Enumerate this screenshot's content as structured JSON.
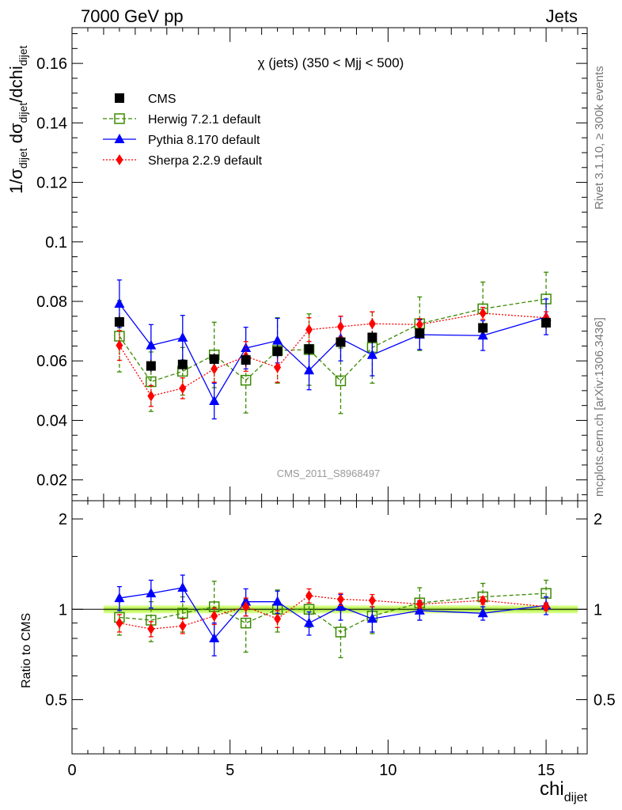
{
  "header": {
    "left": "7000 GeV pp",
    "right": "Jets"
  },
  "side_labels": {
    "rivet": "Rivet 3.1.10, ≥ 300k events",
    "mcplots": "mcplots.cern.ch [arXiv:1306.3436]"
  },
  "colors": {
    "cms": "#000000",
    "herwig": "#3a8a00",
    "pythia": "#0000ff",
    "sherpa": "#ff0000",
    "band": "#ccff66"
  },
  "chart_data": [
    {
      "type": "scatter",
      "title": "χ (jets) (350 < Mjj <  500)",
      "watermark": "CMS_2011_S8968497",
      "ylabel": "1/σ_dijet dσ_dijet/dchi_dijet",
      "ylim": [
        0.013,
        0.172
      ],
      "yticks": [
        0.02,
        0.04,
        0.06,
        0.08,
        0.1,
        0.12,
        0.14,
        0.16
      ],
      "ytick_labels": [
        "0.02",
        "0.04",
        "0.06",
        "0.08",
        "0.1",
        "0.12",
        "0.14",
        "0.16"
      ],
      "xlim": [
        0,
        16.3
      ],
      "legend_position": "top-left",
      "x": [
        1.5,
        2.5,
        3.5,
        4.5,
        5.5,
        6.5,
        7.5,
        8.5,
        9.5,
        11,
        13,
        15
      ],
      "series": [
        {
          "key": "cms",
          "name": "CMS",
          "style": "markers",
          "values": [
            0.0731,
            0.0583,
            0.0588,
            0.0606,
            0.0603,
            0.0632,
            0.064,
            0.0663,
            0.0679,
            0.0693,
            0.0711,
            0.0728
          ],
          "errors": [
            0.002,
            0.002,
            0.002,
            0.002,
            0.002,
            0.002,
            0.002,
            0.002,
            0.002,
            0.002,
            0.002,
            0.002
          ]
        },
        {
          "key": "herwig",
          "name": "Herwig 7.2.1 default",
          "style": "dashed",
          "values": [
            0.0683,
            0.053,
            0.0565,
            0.062,
            0.0535,
            0.0635,
            0.0638,
            0.0533,
            0.0645,
            0.0725,
            0.0775,
            0.0808
          ],
          "errors": [
            0.012,
            0.01,
            0.008,
            0.011,
            0.011,
            0.011,
            0.012,
            0.011,
            0.012,
            0.009,
            0.009,
            0.009
          ]
        },
        {
          "key": "pythia",
          "name": "Pythia 8.170 default",
          "style": "solid",
          "values": [
            0.0792,
            0.0652,
            0.0678,
            0.0465,
            0.0643,
            0.0668,
            0.0568,
            0.0675,
            0.062,
            0.0688,
            0.0685,
            0.0748
          ],
          "errors": [
            0.008,
            0.007,
            0.0075,
            0.006,
            0.007,
            0.0075,
            0.0065,
            0.0075,
            0.007,
            0.005,
            0.005,
            0.006
          ]
        },
        {
          "key": "sherpa",
          "name": "Sherpa 2.2.9 default",
          "style": "dotted",
          "values": [
            0.0652,
            0.0482,
            0.0508,
            0.0573,
            0.0615,
            0.0578,
            0.0705,
            0.0715,
            0.0725,
            0.0722,
            0.076,
            0.0745
          ],
          "errors": [
            0.005,
            0.0035,
            0.0035,
            0.0045,
            0.005,
            0.005,
            0.004,
            0.0035,
            0.004,
            0.002,
            0.002,
            0.002
          ]
        }
      ]
    },
    {
      "type": "scatter",
      "ylabel": "Ratio to CMS",
      "xlabel": "chi_dijet",
      "ylim": [
        0.33,
        2.3
      ],
      "yscale": "log",
      "yticks": [
        0.5,
        1,
        2
      ],
      "ytick_labels": [
        "0.5",
        "1",
        "2"
      ],
      "xlim": [
        0,
        16.3
      ],
      "xticks": [
        0,
        5,
        10,
        15
      ],
      "xtick_labels": [
        "0",
        "5",
        "10",
        "15"
      ],
      "reference_band": {
        "x": [
          1,
          16
        ],
        "half_width": 0.03,
        "inner_half_width": 0.015
      },
      "x": [
        1.5,
        2.5,
        3.5,
        4.5,
        5.5,
        6.5,
        7.5,
        8.5,
        9.5,
        11,
        13,
        15
      ],
      "series": [
        {
          "key": "herwig",
          "name": "Herwig 7.2.1 default",
          "style": "dashed",
          "values": [
            0.94,
            0.92,
            0.97,
            1.02,
            0.9,
            1.0,
            1.0,
            0.84,
            0.95,
            1.05,
            1.1,
            1.13
          ],
          "errors": [
            0.12,
            0.14,
            0.13,
            0.22,
            0.18,
            0.16,
            0.13,
            0.15,
            0.12,
            0.13,
            0.12,
            0.12
          ]
        },
        {
          "key": "pythia",
          "name": "Pythia 8.170 default",
          "style": "solid",
          "values": [
            1.09,
            1.13,
            1.18,
            0.8,
            1.06,
            1.06,
            0.9,
            1.02,
            0.93,
            0.99,
            0.97,
            1.03
          ],
          "errors": [
            0.1,
            0.12,
            0.12,
            0.1,
            0.11,
            0.09,
            0.08,
            0.1,
            0.09,
            0.07,
            0.05,
            0.07
          ]
        },
        {
          "key": "sherpa",
          "name": "Sherpa 2.2.9 default",
          "style": "dotted",
          "values": [
            0.9,
            0.86,
            0.88,
            0.95,
            1.02,
            0.93,
            1.11,
            1.08,
            1.07,
            1.04,
            1.07,
            1.02
          ],
          "errors": [
            0.06,
            0.05,
            0.05,
            0.06,
            0.07,
            0.06,
            0.06,
            0.05,
            0.05,
            0.03,
            0.03,
            0.03
          ]
        }
      ]
    }
  ]
}
